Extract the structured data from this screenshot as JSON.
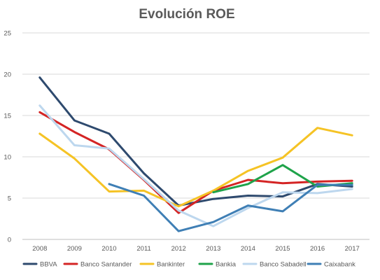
{
  "chart_data": {
    "type": "line",
    "title": "Evolución ROE",
    "xlabel": "",
    "ylabel": "",
    "categories": [
      "2008",
      "2009",
      "2010",
      "2011",
      "2012",
      "2013",
      "2014",
      "2015",
      "2016",
      "2017"
    ],
    "ylim": [
      0,
      25
    ],
    "yticks": [
      0,
      5,
      10,
      15,
      20,
      25
    ],
    "grid": true,
    "legend_position": "bottom",
    "series": [
      {
        "name": "BBVA",
        "color": "#2e4a6e",
        "values": [
          19.6,
          14.4,
          12.8,
          8.0,
          4.1,
          4.9,
          5.3,
          5.2,
          6.7,
          6.4
        ]
      },
      {
        "name": "Banco Santander",
        "color": "#d42424",
        "values": [
          15.4,
          13.0,
          10.9,
          7.2,
          3.2,
          5.9,
          7.2,
          6.8,
          7.0,
          7.1
        ]
      },
      {
        "name": "Bankinter",
        "color": "#f5c325",
        "values": [
          12.8,
          9.8,
          5.8,
          5.9,
          4.0,
          5.9,
          8.3,
          9.9,
          13.5,
          12.6
        ]
      },
      {
        "name": "Bankia",
        "color": "#1fa34a",
        "values": [
          null,
          null,
          null,
          null,
          null,
          5.7,
          6.7,
          9.0,
          6.4,
          6.8
        ]
      },
      {
        "name": "Banco Sabadell",
        "color": "#bdd7ee",
        "values": [
          16.2,
          11.4,
          11.0,
          7.3,
          3.5,
          1.6,
          3.8,
          5.7,
          5.6,
          6.1
        ]
      },
      {
        "name": "Caixabank",
        "color": "#3f7fb5",
        "values": [
          null,
          null,
          6.7,
          5.3,
          1.0,
          2.1,
          4.1,
          3.4,
          6.6,
          6.6
        ]
      }
    ]
  }
}
